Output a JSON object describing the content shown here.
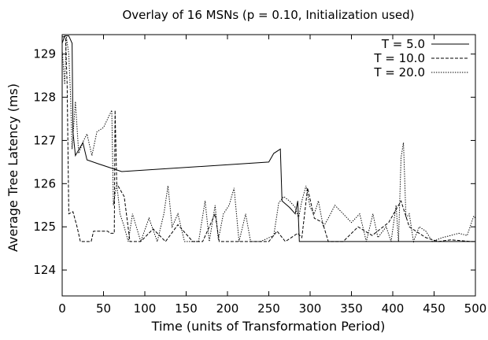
{
  "chart_data": {
    "type": "line",
    "title": "Overlay of 16 MSNs (p = 0.10, Initialization used)",
    "xlabel": "Time (units of Transformation Period)",
    "ylabel": "Average Tree Latency (ms)",
    "xlim": [
      0,
      500
    ],
    "ylim": [
      123.4,
      129.45
    ],
    "xticks": [
      0,
      50,
      100,
      150,
      200,
      250,
      300,
      350,
      400,
      450,
      500
    ],
    "yticks": [
      124,
      125,
      126,
      127,
      128,
      129
    ],
    "legend_position": "top-right",
    "grid": false,
    "series": [
      {
        "name": "T = 5.0",
        "dash": "solid",
        "points": [
          [
            0,
            129.25
          ],
          [
            3,
            129.42
          ],
          [
            8,
            129.42
          ],
          [
            12,
            129.25
          ],
          [
            13,
            127.2
          ],
          [
            16,
            126.65
          ],
          [
            22,
            126.85
          ],
          [
            25,
            126.95
          ],
          [
            30,
            126.55
          ],
          [
            45,
            126.45
          ],
          [
            72,
            126.28
          ],
          [
            250,
            126.5
          ],
          [
            256,
            126.7
          ],
          [
            264,
            126.8
          ],
          [
            266,
            125.6
          ],
          [
            275,
            125.45
          ],
          [
            282,
            125.3
          ],
          [
            285,
            125.6
          ],
          [
            287,
            124.66
          ],
          [
            300,
            124.66
          ],
          [
            500,
            124.66
          ]
        ]
      },
      {
        "name": "T = 10.0",
        "dash": "dashed",
        "points": [
          [
            0,
            129.4
          ],
          [
            4,
            129.4
          ],
          [
            6,
            128.3
          ],
          [
            8,
            125.3
          ],
          [
            13,
            125.35
          ],
          [
            18,
            125.0
          ],
          [
            22,
            124.66
          ],
          [
            35,
            124.66
          ],
          [
            38,
            124.9
          ],
          [
            55,
            124.9
          ],
          [
            58,
            124.85
          ],
          [
            63,
            124.85
          ],
          [
            64,
            127.7
          ],
          [
            66,
            126.0
          ],
          [
            75,
            125.7
          ],
          [
            82,
            124.66
          ],
          [
            95,
            124.66
          ],
          [
            110,
            124.95
          ],
          [
            125,
            124.66
          ],
          [
            140,
            125.05
          ],
          [
            158,
            124.66
          ],
          [
            170,
            124.66
          ],
          [
            185,
            125.3
          ],
          [
            190,
            124.66
          ],
          [
            250,
            124.66
          ],
          [
            260,
            124.9
          ],
          [
            270,
            124.66
          ],
          [
            285,
            124.85
          ],
          [
            290,
            124.75
          ],
          [
            297,
            125.9
          ],
          [
            305,
            125.2
          ],
          [
            315,
            125.1
          ],
          [
            322,
            124.66
          ],
          [
            340,
            124.66
          ],
          [
            358,
            125.0
          ],
          [
            375,
            124.8
          ],
          [
            395,
            125.1
          ],
          [
            410,
            125.6
          ],
          [
            420,
            125.0
          ],
          [
            428,
            124.9
          ],
          [
            440,
            124.75
          ],
          [
            455,
            124.66
          ],
          [
            470,
            124.7
          ],
          [
            495,
            124.66
          ],
          [
            500,
            124.66
          ]
        ]
      },
      {
        "name": "T = 20.0",
        "dash": "dotted",
        "points": [
          [
            0,
            129.1
          ],
          [
            3,
            128.3
          ],
          [
            5,
            129.4
          ],
          [
            8,
            129.0
          ],
          [
            10,
            128.1
          ],
          [
            12,
            126.8
          ],
          [
            16,
            127.9
          ],
          [
            20,
            126.7
          ],
          [
            26,
            127.0
          ],
          [
            30,
            127.15
          ],
          [
            36,
            126.65
          ],
          [
            42,
            127.2
          ],
          [
            50,
            127.3
          ],
          [
            60,
            127.7
          ],
          [
            62,
            125.5
          ],
          [
            66,
            126.0
          ],
          [
            70,
            125.3
          ],
          [
            75,
            125.0
          ],
          [
            80,
            124.66
          ],
          [
            85,
            125.3
          ],
          [
            95,
            124.66
          ],
          [
            105,
            125.2
          ],
          [
            115,
            124.66
          ],
          [
            123,
            125.3
          ],
          [
            128,
            125.95
          ],
          [
            133,
            125.0
          ],
          [
            140,
            125.3
          ],
          [
            148,
            124.66
          ],
          [
            165,
            124.66
          ],
          [
            173,
            125.6
          ],
          [
            178,
            124.66
          ],
          [
            185,
            125.5
          ],
          [
            189,
            124.7
          ],
          [
            195,
            125.3
          ],
          [
            202,
            125.5
          ],
          [
            208,
            125.9
          ],
          [
            214,
            124.66
          ],
          [
            222,
            125.3
          ],
          [
            228,
            124.66
          ],
          [
            240,
            124.66
          ],
          [
            256,
            124.8
          ],
          [
            262,
            125.55
          ],
          [
            268,
            125.7
          ],
          [
            275,
            125.6
          ],
          [
            282,
            125.45
          ],
          [
            286,
            125.2
          ],
          [
            290,
            125.6
          ],
          [
            295,
            125.95
          ],
          [
            300,
            125.45
          ],
          [
            305,
            125.3
          ],
          [
            310,
            125.6
          ],
          [
            316,
            125.0
          ],
          [
            322,
            125.2
          ],
          [
            330,
            125.5
          ],
          [
            340,
            125.3
          ],
          [
            350,
            125.1
          ],
          [
            360,
            125.3
          ],
          [
            368,
            124.66
          ],
          [
            376,
            125.3
          ],
          [
            382,
            124.75
          ],
          [
            392,
            125.0
          ],
          [
            398,
            124.66
          ],
          [
            404,
            125.5
          ],
          [
            407,
            124.66
          ],
          [
            410,
            126.6
          ],
          [
            413,
            126.95
          ],
          [
            416,
            125.2
          ],
          [
            420,
            125.3
          ],
          [
            425,
            124.66
          ],
          [
            432,
            125.0
          ],
          [
            440,
            124.9
          ],
          [
            448,
            124.66
          ],
          [
            460,
            124.75
          ],
          [
            470,
            124.8
          ],
          [
            480,
            124.85
          ],
          [
            490,
            124.8
          ],
          [
            498,
            125.25
          ],
          [
            500,
            125.2
          ]
        ]
      }
    ]
  }
}
